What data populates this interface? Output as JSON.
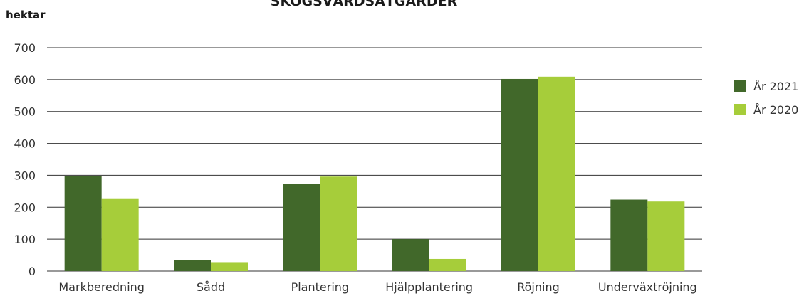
{
  "chart_data": {
    "type": "bar",
    "title": "SKOGSVÅRDSÅTGÄRDER",
    "ylabel": "hektar",
    "xlabel": "",
    "ylim": [
      0,
      700
    ],
    "yticks": [
      0,
      100,
      200,
      300,
      400,
      500,
      600,
      700
    ],
    "grid": true,
    "legend_position": "right",
    "categories": [
      "Markberedning",
      "Sådd",
      "Plantering",
      "Hjälpplantering",
      "Röjning",
      "Underväxtröjning"
    ],
    "series": [
      {
        "name": "År 2021",
        "color": "#41682a",
        "values": [
          297,
          34,
          273,
          100,
          602,
          224
        ]
      },
      {
        "name": "År 2020",
        "color": "#a6cd3a",
        "values": [
          228,
          28,
          296,
          38,
          609,
          218
        ]
      }
    ]
  }
}
